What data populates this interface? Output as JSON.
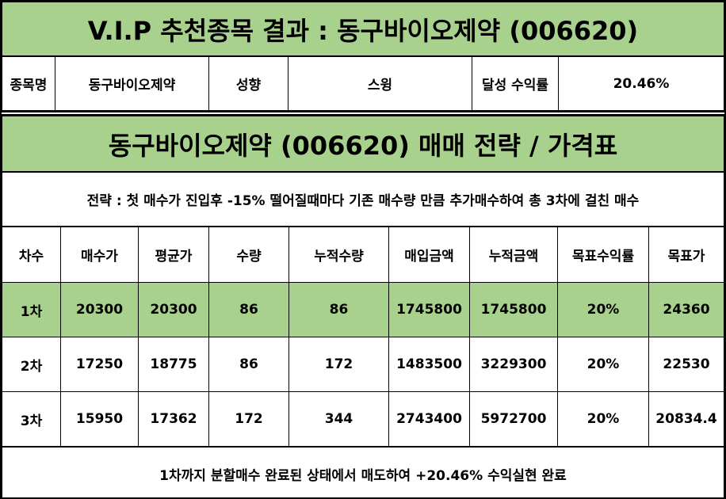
{
  "title": "V.I.P 추천종목 결과 : 동구바이오제약 (006620)",
  "info": {
    "name_label": "종목명",
    "name_value": "동구바이오제약",
    "style_label": "성향",
    "style_value": "스윙",
    "return_label": "달성 수익률",
    "return_value": "20.46%"
  },
  "strategy_title": "동구바이오제약 (006620) 매매 전략 / 가격표",
  "strategy_text": "전략 : 첫 매수가 진입후 -15% 떨어질때마다 기존 매수량 만큼 추가매수하여 총 3차에 걸친 매수",
  "columns": [
    "차수",
    "매수가",
    "평균가",
    "수량",
    "누적수량",
    "매입금액",
    "누적금액",
    "목표수익률",
    "목표가"
  ],
  "rows": [
    [
      "1차",
      "20300",
      "20300",
      "86",
      "86",
      "1745800",
      "1745800",
      "20%",
      "24360"
    ],
    [
      "2차",
      "17250",
      "18775",
      "86",
      "172",
      "1483500",
      "3229300",
      "20%",
      "22530"
    ],
    [
      "3차",
      "15950",
      "17362",
      "172",
      "344",
      "2743400",
      "5972700",
      "20%",
      "20834.4"
    ]
  ],
  "footer": "1차까지 분할매수 완료된 상태에서 매도하여 +20.46% 수익실현 완료",
  "colors": {
    "highlight": "#a9d18e",
    "border": "#000000",
    "background": "#ffffff"
  }
}
